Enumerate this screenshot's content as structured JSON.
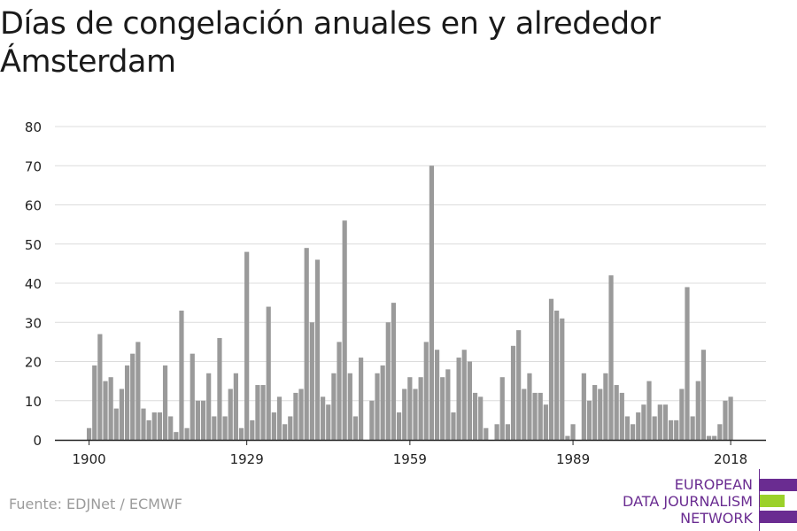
{
  "title": "Días de congelación anuales en y alrededor Ámsterdam",
  "source": "Fuente: EDJNet / ECMWF",
  "logo": {
    "lines": [
      "EUROPEAN",
      "DATA JOURNALISM",
      "NETWORK"
    ],
    "colors": {
      "purple": "#6a2c91",
      "green": "#9bd12a"
    }
  },
  "colors": {
    "bar": "#9a9a9a",
    "grid": "#dcdcdc",
    "axis": "#222222"
  },
  "chart_data": {
    "type": "bar",
    "title": "Días de congelación anuales en y alrededor Ámsterdam",
    "xlabel": "",
    "ylabel": "",
    "ylim": [
      0,
      80
    ],
    "yticks": [
      0,
      10,
      20,
      30,
      40,
      50,
      60,
      70,
      80
    ],
    "xticks": [
      1900,
      1929,
      1959,
      1989,
      2018
    ],
    "grid": true,
    "x": [
      1900,
      1901,
      1902,
      1903,
      1904,
      1905,
      1906,
      1907,
      1908,
      1909,
      1910,
      1911,
      1912,
      1913,
      1914,
      1915,
      1916,
      1917,
      1918,
      1919,
      1920,
      1921,
      1922,
      1923,
      1924,
      1925,
      1926,
      1927,
      1928,
      1929,
      1930,
      1931,
      1932,
      1933,
      1934,
      1935,
      1936,
      1937,
      1938,
      1939,
      1940,
      1941,
      1942,
      1943,
      1944,
      1945,
      1946,
      1947,
      1948,
      1949,
      1950,
      1951,
      1952,
      1953,
      1954,
      1955,
      1956,
      1957,
      1958,
      1959,
      1960,
      1961,
      1962,
      1963,
      1964,
      1965,
      1966,
      1967,
      1968,
      1969,
      1970,
      1971,
      1972,
      1973,
      1974,
      1975,
      1976,
      1977,
      1978,
      1979,
      1980,
      1981,
      1982,
      1983,
      1984,
      1985,
      1986,
      1987,
      1988,
      1989,
      1990,
      1991,
      1992,
      1993,
      1994,
      1995,
      1996,
      1997,
      1998,
      1999,
      2000,
      2001,
      2002,
      2003,
      2004,
      2005,
      2006,
      2007,
      2008,
      2009,
      2010,
      2011,
      2012,
      2013,
      2014,
      2015,
      2016,
      2017,
      2018
    ],
    "values": [
      3,
      19,
      27,
      15,
      16,
      8,
      13,
      19,
      22,
      25,
      8,
      5,
      7,
      7,
      19,
      6,
      2,
      33,
      3,
      22,
      10,
      10,
      17,
      6,
      26,
      6,
      13,
      17,
      3,
      48,
      5,
      14,
      14,
      34,
      7,
      11,
      4,
      6,
      12,
      13,
      49,
      30,
      46,
      11,
      9,
      17,
      25,
      56,
      17,
      6,
      21,
      0,
      10,
      17,
      19,
      30,
      35,
      7,
      13,
      16,
      13,
      16,
      25,
      70,
      23,
      16,
      18,
      7,
      21,
      23,
      20,
      12,
      11,
      3,
      0,
      4,
      16,
      4,
      24,
      28,
      13,
      17,
      12,
      12,
      9,
      36,
      33,
      31,
      1,
      4,
      0,
      17,
      10,
      14,
      13,
      17,
      42,
      14,
      12,
      6,
      4,
      7,
      9,
      15,
      6,
      9,
      9,
      5,
      5,
      13,
      39,
      6,
      15,
      23,
      1,
      1,
      4,
      10,
      11
    ]
  }
}
